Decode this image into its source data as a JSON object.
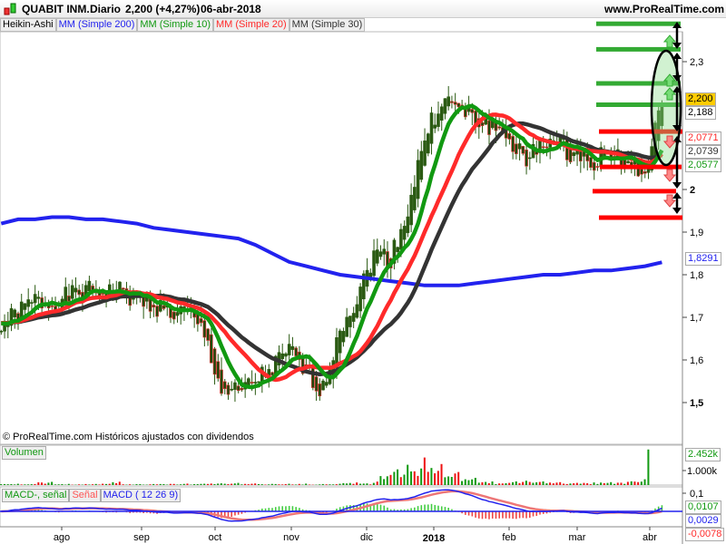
{
  "header": {
    "symbol": "QUABIT INM.",
    "period": "Diario",
    "price_change": "2,200 (+4,27%)",
    "date": "06-abr-2018",
    "site": "www.ProRealTime.com"
  },
  "legend": [
    {
      "label": "Heikin-Ashi",
      "color": "#000000"
    },
    {
      "label": "MM (Simple 200)",
      "color": "#2222ee"
    },
    {
      "label": "MM (Simple 10)",
      "color": "#119911"
    },
    {
      "label": "MM (Simple 20)",
      "color": "#ff2a2a"
    },
    {
      "label": "MM (Simple 30)",
      "color": "#333333"
    }
  ],
  "copyright": "© ProRealTime.com  Históricos ajustados con dividendos",
  "price_axis": {
    "ticks": [
      "2,3",
      "2",
      "1,9",
      "1,8",
      "1,7",
      "1,6",
      "1,5"
    ],
    "bold_ticks": [
      "2",
      "1,5"
    ],
    "markers": [
      {
        "label": "2,200",
        "color": "#000000",
        "bg": "#ffcc00"
      },
      {
        "label": "2,188",
        "color": "#000000",
        "bg": "#ffffff"
      },
      {
        "label": "2,0771",
        "color": "#ff2a2a",
        "bg": "#ffffff"
      },
      {
        "label": "2,0739",
        "color": "#333333",
        "bg": "#ffffff"
      },
      {
        "label": "2,0577",
        "color": "#119911",
        "bg": "#ffffff"
      },
      {
        "label": "1,8291",
        "color": "#2222ee",
        "bg": "#ffffff"
      }
    ]
  },
  "volume": {
    "label": "Volumen",
    "ticks": [
      "1.000k"
    ],
    "marker": "2.452k"
  },
  "macd": {
    "labels": [
      "MACD-, señal",
      "Señal",
      "MACD ( 12 26 9)"
    ],
    "ticks": [
      "0,1"
    ],
    "markers": [
      {
        "label": "0,0107",
        "color": "#119911"
      },
      {
        "label": "0,0029",
        "color": "#2222ee"
      },
      {
        "label": "-0,0078",
        "color": "#ff2a2a"
      }
    ]
  },
  "x_axis": {
    "labels": [
      "ago",
      "sep",
      "oct",
      "nov",
      "dic",
      "2018",
      "feb",
      "mar",
      "abr"
    ]
  },
  "chart_data": {
    "type": "candlestick",
    "style": "Heikin-Ashi",
    "frequency": "daily (weekly closes listed)",
    "dates": [
      "2017-07-07",
      "2017-07-14",
      "2017-07-21",
      "2017-07-28",
      "2017-08-04",
      "2017-08-11",
      "2017-08-18",
      "2017-08-25",
      "2017-09-01",
      "2017-09-08",
      "2017-09-15",
      "2017-09-22",
      "2017-09-29",
      "2017-10-06",
      "2017-10-13",
      "2017-10-20",
      "2017-10-27",
      "2017-11-03",
      "2017-11-10",
      "2017-11-17",
      "2017-11-24",
      "2017-12-01",
      "2017-12-08",
      "2017-12-15",
      "2017-12-22",
      "2017-12-29",
      "2018-01-05",
      "2018-01-12",
      "2018-01-19",
      "2018-01-26",
      "2018-02-02",
      "2018-02-09",
      "2018-02-16",
      "2018-02-23",
      "2018-03-02",
      "2018-03-09",
      "2018-03-16",
      "2018-03-23",
      "2018-03-30",
      "2018-04-06"
    ],
    "close": [
      1.68,
      1.71,
      1.74,
      1.73,
      1.75,
      1.76,
      1.76,
      1.76,
      1.74,
      1.73,
      1.71,
      1.71,
      1.66,
      1.53,
      1.52,
      1.55,
      1.58,
      1.62,
      1.57,
      1.53,
      1.68,
      1.74,
      1.85,
      1.84,
      1.95,
      2.12,
      2.21,
      2.19,
      2.16,
      2.15,
      2.12,
      2.06,
      2.12,
      2.1,
      2.08,
      2.07,
      2.09,
      2.06,
      2.03,
      2.2
    ],
    "ma200": [
      1.92,
      1.93,
      1.93,
      1.935,
      1.935,
      1.93,
      1.93,
      1.925,
      1.92,
      1.91,
      1.905,
      1.9,
      1.895,
      1.89,
      1.885,
      1.87,
      1.85,
      1.83,
      1.82,
      1.81,
      1.8,
      1.795,
      1.79,
      1.785,
      1.78,
      1.775,
      1.775,
      1.775,
      1.78,
      1.785,
      1.79,
      1.795,
      1.8,
      1.8,
      1.805,
      1.81,
      1.81,
      1.815,
      1.82,
      1.8291
    ],
    "volume_k": [
      60,
      90,
      70,
      220,
      80,
      70,
      90,
      230,
      60,
      70,
      80,
      100,
      90,
      120,
      150,
      110,
      80,
      90,
      100,
      70,
      90,
      180,
      150,
      700,
      1400,
      1900,
      1450,
      900,
      500,
      250,
      150,
      300,
      250,
      200,
      150,
      180,
      200,
      220,
      400,
      2452
    ],
    "ylim": [
      1.45,
      2.42
    ],
    "last": {
      "close": 2.2,
      "ma10": 2.0577,
      "ma20": 2.0771,
      "ma30": 2.0739,
      "ma200": 1.8291
    },
    "annotations": {
      "green_levels": [
        2.39,
        2.33,
        2.25,
        2.2
      ],
      "red_levels": [
        2.136,
        2.053,
        1.996,
        1.934
      ]
    }
  }
}
